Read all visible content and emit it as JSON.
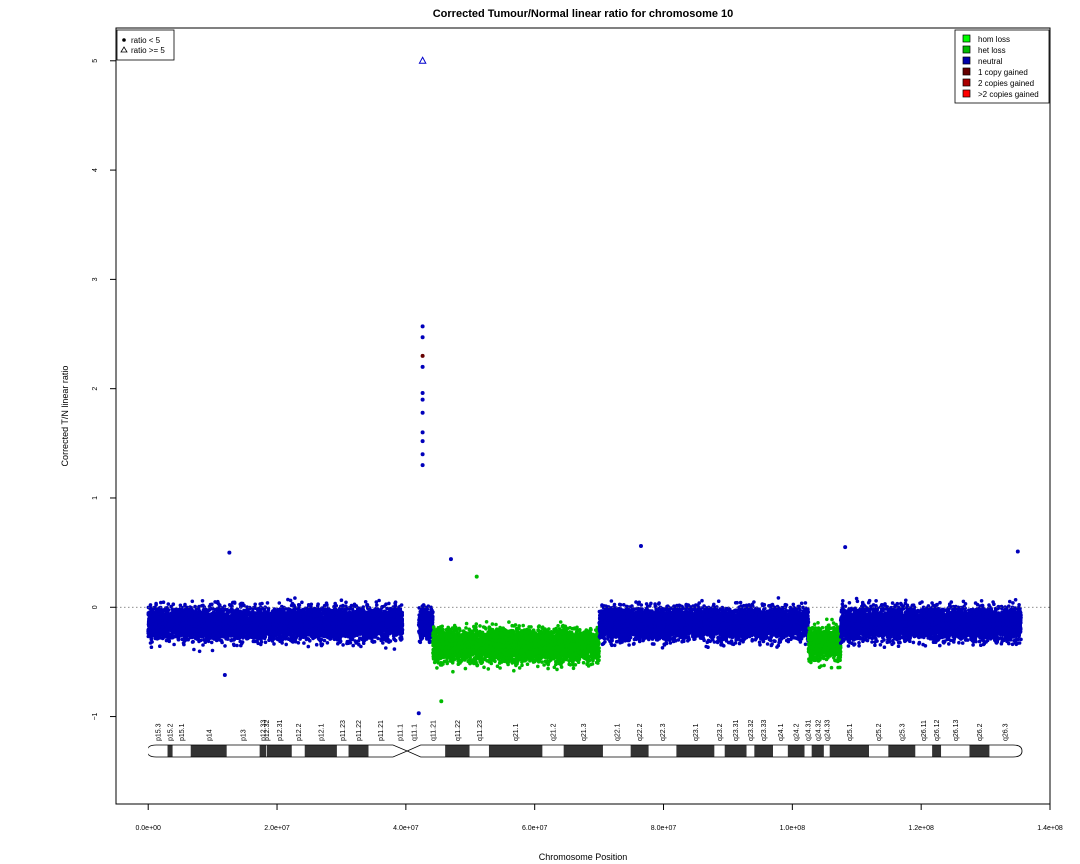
{
  "chart_data": {
    "type": "scatter",
    "title": "Corrected Tumour/Normal linear ratio for chromosome  10",
    "xlabel": "Chromosome Position",
    "ylabel": "Corrected T/N linear ratio",
    "xlim": [
      -5000000,
      140000000
    ],
    "ylim": [
      -1.8,
      5.3
    ],
    "x_ticks": [
      0,
      20000000,
      40000000,
      60000000,
      80000000,
      100000000,
      120000000,
      140000000
    ],
    "x_tick_labels": [
      "0.0e+00",
      "2.0e+07",
      "4.0e+07",
      "6.0e+07",
      "8.0e+07",
      "1.0e+08",
      "1.2e+08",
      "1.4e+08"
    ],
    "y_ticks": [
      -1,
      0,
      1,
      2,
      3,
      4,
      5
    ],
    "y_tick_labels": [
      "−1",
      "0",
      "1",
      "2",
      "3",
      "4",
      "5"
    ],
    "reference_line_y": 0,
    "shape_legend": {
      "position": "top-left",
      "entries": [
        {
          "label": "ratio < 5",
          "symbol": "dot"
        },
        {
          "label": "ratio >= 5",
          "symbol": "triangle"
        }
      ]
    },
    "state_legend": {
      "position": "top-right",
      "entries": [
        {
          "label": "hom loss",
          "color": "#00ff00"
        },
        {
          "label": "het loss",
          "color": "#00bb00"
        },
        {
          "label": "neutral",
          "color": "#0000aa"
        },
        {
          "label": "1 copy gained",
          "color": "#660000"
        },
        {
          "label": "2 copies gained",
          "color": "#aa0000"
        },
        {
          "label": ">2 copies gained",
          "color": "#ff0000"
        }
      ]
    },
    "segments": [
      {
        "state": "neutral",
        "color": "#0000bb",
        "start": 0,
        "end": 39500000,
        "mean": -0.15
      },
      {
        "state": "neutral",
        "color": "#0000bb",
        "start": 42000000,
        "end": 44200000,
        "mean": -0.15
      },
      {
        "state": "het loss",
        "color": "#00bb00",
        "start": 44200000,
        "end": 70000000,
        "mean": -0.35
      },
      {
        "state": "neutral",
        "color": "#0000bb",
        "start": 70000000,
        "end": 102500000,
        "mean": -0.15
      },
      {
        "state": "het loss",
        "color": "#00bb00",
        "start": 102500000,
        "end": 107500000,
        "mean": -0.33
      },
      {
        "state": "neutral",
        "color": "#0000bb",
        "start": 107500000,
        "end": 135500000,
        "mean": -0.15
      }
    ],
    "notable_points": [
      {
        "x": 42600000,
        "y": 5.0,
        "symbol": "triangle",
        "color": "#0000cc"
      },
      {
        "x": 42600000,
        "y": 2.3,
        "symbol": "dot",
        "color": "#660000"
      },
      {
        "x": 42600000,
        "y": 2.57,
        "symbol": "dot",
        "color": "#0000bb"
      },
      {
        "x": 42600000,
        "y": 2.47,
        "symbol": "dot",
        "color": "#0000bb"
      },
      {
        "x": 42600000,
        "y": 2.2,
        "symbol": "dot",
        "color": "#0000bb"
      },
      {
        "x": 42600000,
        "y": 1.96,
        "symbol": "dot",
        "color": "#0000bb"
      },
      {
        "x": 42600000,
        "y": 1.9,
        "symbol": "dot",
        "color": "#0000bb"
      },
      {
        "x": 42600000,
        "y": 1.78,
        "symbol": "dot",
        "color": "#0000bb"
      },
      {
        "x": 42600000,
        "y": 1.6,
        "symbol": "dot",
        "color": "#0000bb"
      },
      {
        "x": 42600000,
        "y": 1.52,
        "symbol": "dot",
        "color": "#0000bb"
      },
      {
        "x": 42600000,
        "y": 1.4,
        "symbol": "dot",
        "color": "#0000bb"
      },
      {
        "x": 42600000,
        "y": 1.3,
        "symbol": "dot",
        "color": "#0000bb"
      },
      {
        "x": 12600000,
        "y": 0.5,
        "symbol": "dot",
        "color": "#0000bb"
      },
      {
        "x": 76500000,
        "y": 0.56,
        "symbol": "dot",
        "color": "#0000bb"
      },
      {
        "x": 108200000,
        "y": 0.55,
        "symbol": "dot",
        "color": "#0000bb"
      },
      {
        "x": 135000000,
        "y": 0.51,
        "symbol": "dot",
        "color": "#0000bb"
      },
      {
        "x": 47000000,
        "y": 0.44,
        "symbol": "dot",
        "color": "#0000bb"
      },
      {
        "x": 11900000,
        "y": -0.62,
        "symbol": "dot",
        "color": "#0000bb"
      },
      {
        "x": 42000000,
        "y": -0.97,
        "symbol": "dot",
        "color": "#0000bb"
      },
      {
        "x": 45500000,
        "y": -0.86,
        "symbol": "dot",
        "color": "#00bb00"
      },
      {
        "x": 51000000,
        "y": 0.28,
        "symbol": "dot",
        "color": "#00bb00"
      }
    ],
    "ideogram": {
      "bands": [
        {
          "name": "p15.3",
          "start": 0,
          "end": 3000000,
          "stain": "white"
        },
        {
          "name": "p15.2",
          "start": 3000000,
          "end": 3800000,
          "stain": "dark"
        },
        {
          "name": "p15.1",
          "start": 3800000,
          "end": 6600000,
          "stain": "white"
        },
        {
          "name": "p14",
          "start": 6600000,
          "end": 12200000,
          "stain": "dark"
        },
        {
          "name": "p13",
          "start": 12200000,
          "end": 17300000,
          "stain": "white"
        },
        {
          "name": "p12.33",
          "start": 17300000,
          "end": 18300000,
          "stain": "dark"
        },
        {
          "name": "p12.32",
          "start": 18300000,
          "end": 18400000,
          "stain": "white"
        },
        {
          "name": "p12.31",
          "start": 18400000,
          "end": 22300000,
          "stain": "dark"
        },
        {
          "name": "p12.2",
          "start": 22300000,
          "end": 24300000,
          "stain": "white"
        },
        {
          "name": "p12.1",
          "start": 24300000,
          "end": 29300000,
          "stain": "dark"
        },
        {
          "name": "p11.23",
          "start": 29300000,
          "end": 31100000,
          "stain": "white"
        },
        {
          "name": "p11.22",
          "start": 31100000,
          "end": 34200000,
          "stain": "dark"
        },
        {
          "name": "p11.21",
          "start": 34200000,
          "end": 38000000,
          "stain": "white"
        },
        {
          "name": "p11.1",
          "start": 38000000,
          "end": 40200000,
          "stain": "gray"
        },
        {
          "name": "q11.1",
          "start": 40200000,
          "end": 42300000,
          "stain": "gray"
        },
        {
          "name": "q11.21",
          "start": 42300000,
          "end": 46100000,
          "stain": "white"
        },
        {
          "name": "q11.22",
          "start": 46100000,
          "end": 49900000,
          "stain": "dark"
        },
        {
          "name": "q11.23",
          "start": 49900000,
          "end": 52900000,
          "stain": "white"
        },
        {
          "name": "q21.1",
          "start": 52900000,
          "end": 61200000,
          "stain": "dark"
        },
        {
          "name": "q21.2",
          "start": 61200000,
          "end": 64500000,
          "stain": "white"
        },
        {
          "name": "q21.3",
          "start": 64500000,
          "end": 70600000,
          "stain": "dark"
        },
        {
          "name": "q22.1",
          "start": 70600000,
          "end": 74900000,
          "stain": "white"
        },
        {
          "name": "q22.2",
          "start": 74900000,
          "end": 77700000,
          "stain": "dark"
        },
        {
          "name": "q22.3",
          "start": 77700000,
          "end": 82000000,
          "stain": "white"
        },
        {
          "name": "q23.1",
          "start": 82000000,
          "end": 87900000,
          "stain": "dark"
        },
        {
          "name": "q23.2",
          "start": 87900000,
          "end": 89500000,
          "stain": "white"
        },
        {
          "name": "q23.31",
          "start": 89500000,
          "end": 92900000,
          "stain": "dark"
        },
        {
          "name": "q23.32",
          "start": 92900000,
          "end": 94100000,
          "stain": "white"
        },
        {
          "name": "q23.33",
          "start": 94100000,
          "end": 97000000,
          "stain": "dark"
        },
        {
          "name": "q24.1",
          "start": 97000000,
          "end": 99300000,
          "stain": "white"
        },
        {
          "name": "q24.2",
          "start": 99300000,
          "end": 101900000,
          "stain": "dark"
        },
        {
          "name": "q24.31",
          "start": 101900000,
          "end": 103000000,
          "stain": "white"
        },
        {
          "name": "q24.32",
          "start": 103000000,
          "end": 104900000,
          "stain": "dark"
        },
        {
          "name": "q24.33",
          "start": 104900000,
          "end": 105800000,
          "stain": "white"
        },
        {
          "name": "q25.1",
          "start": 105800000,
          "end": 111900000,
          "stain": "dark"
        },
        {
          "name": "q25.2",
          "start": 111900000,
          "end": 114900000,
          "stain": "white"
        },
        {
          "name": "q25.3",
          "start": 114900000,
          "end": 119100000,
          "stain": "dark"
        },
        {
          "name": "q26.11",
          "start": 119100000,
          "end": 121700000,
          "stain": "white"
        },
        {
          "name": "q26.12",
          "start": 121700000,
          "end": 123100000,
          "stain": "dark"
        },
        {
          "name": "q26.13",
          "start": 123100000,
          "end": 127500000,
          "stain": "white"
        },
        {
          "name": "q26.2",
          "start": 127500000,
          "end": 130600000,
          "stain": "dark"
        },
        {
          "name": "q26.3",
          "start": 130600000,
          "end": 135500000,
          "stain": "white"
        }
      ]
    }
  }
}
